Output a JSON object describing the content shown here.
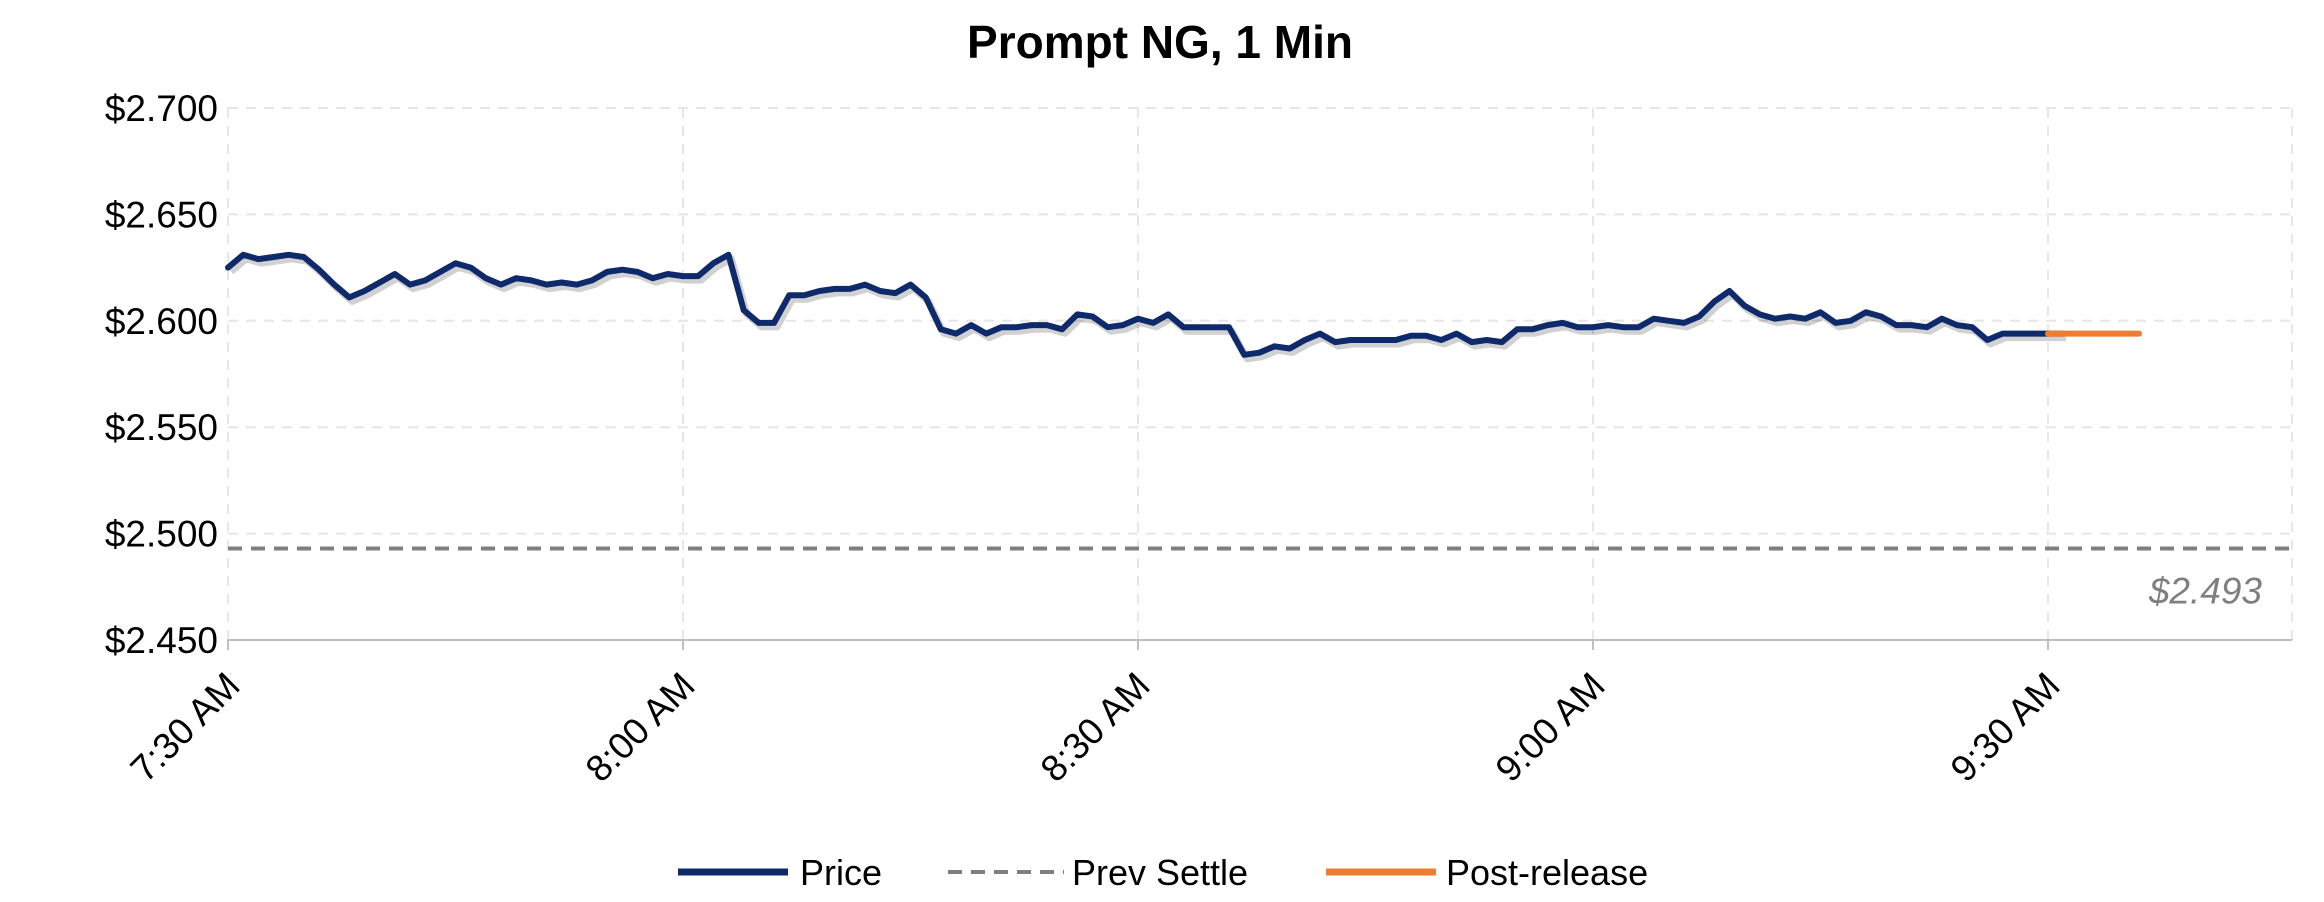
{
  "chart_data": {
    "type": "line",
    "title": "Prompt NG, 1 Min",
    "xlabel": "",
    "ylabel": "",
    "x_start": "7:30 AM",
    "x_step_minutes": 1,
    "x_ticks": [
      "7:30 AM",
      "8:00 AM",
      "8:30 AM",
      "9:00 AM",
      "9:30 AM"
    ],
    "x_range_minutes_from_first_tick": [
      0,
      136
    ],
    "ylim": [
      2.45,
      2.7
    ],
    "y_ticks": [
      "$2.450",
      "$2.500",
      "$2.550",
      "$2.600",
      "$2.650",
      "$2.700"
    ],
    "grid": true,
    "legend_position": "bottom",
    "series": [
      {
        "name": "Price",
        "color": "#0e2a6b",
        "style": "solid",
        "x_offset_minutes": 0,
        "values": [
          2.625,
          2.631,
          2.629,
          2.63,
          2.631,
          2.63,
          2.624,
          2.617,
          2.611,
          2.614,
          2.618,
          2.622,
          2.617,
          2.619,
          2.623,
          2.627,
          2.625,
          2.62,
          2.617,
          2.62,
          2.619,
          2.617,
          2.618,
          2.617,
          2.619,
          2.623,
          2.624,
          2.623,
          2.62,
          2.622,
          2.621,
          2.621,
          2.627,
          2.631,
          2.605,
          2.599,
          2.599,
          2.612,
          2.612,
          2.614,
          2.615,
          2.615,
          2.617,
          2.614,
          2.613,
          2.617,
          2.611,
          2.596,
          2.594,
          2.598,
          2.594,
          2.597,
          2.597,
          2.598,
          2.598,
          2.596,
          2.603,
          2.602,
          2.597,
          2.598,
          2.601,
          2.599,
          2.603,
          2.597,
          2.597,
          2.597,
          2.597,
          2.584,
          2.585,
          2.588,
          2.587,
          2.591,
          2.594,
          2.59,
          2.591,
          2.591,
          2.591,
          2.591,
          2.593,
          2.593,
          2.591,
          2.594,
          2.59,
          2.591,
          2.59,
          2.596,
          2.596,
          2.598,
          2.599,
          2.597,
          2.597,
          2.598,
          2.597,
          2.597,
          2.601,
          2.6,
          2.599,
          2.602,
          2.609,
          2.614,
          2.607,
          2.603,
          2.601,
          2.602,
          2.601,
          2.604,
          2.599,
          2.6,
          2.604,
          2.602,
          2.598,
          2.598,
          2.597,
          2.601,
          2.598,
          2.597,
          2.591,
          2.594,
          2.594,
          2.594,
          2.594,
          2.594
        ]
      },
      {
        "name": "Prev Settle",
        "color": "#7f7f7f",
        "style": "dashed",
        "value": 2.493
      },
      {
        "name": "Post-release",
        "color": "#ed7d31",
        "style": "solid",
        "x_minutes": [
          120,
          126
        ],
        "values": [
          2.594,
          2.594
        ]
      }
    ],
    "annotations": [
      {
        "text": "$2.493",
        "series": "Prev Settle"
      }
    ]
  }
}
